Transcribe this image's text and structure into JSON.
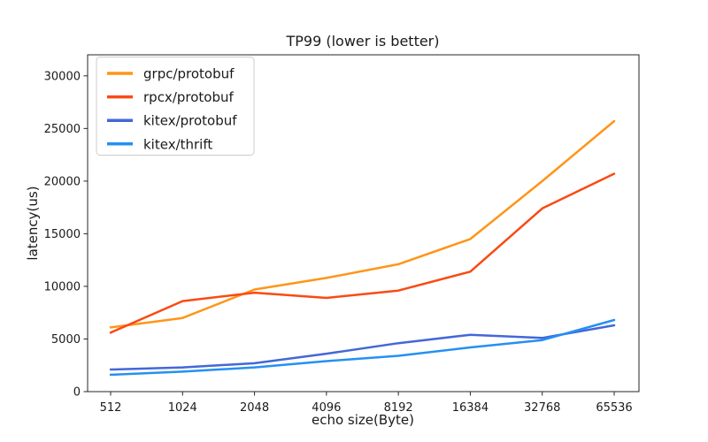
{
  "chart_data": {
    "type": "line",
    "title": "TP99 (lower is better)",
    "xlabel": "echo size(Byte)",
    "ylabel": "latency(us)",
    "categories": [
      "512",
      "1024",
      "2048",
      "4096",
      "8192",
      "16384",
      "32768",
      "65536"
    ],
    "yticks": [
      0,
      5000,
      10000,
      15000,
      20000,
      25000,
      30000
    ],
    "ylim": [
      0,
      32000
    ],
    "grid": false,
    "legend_position": "upper-left",
    "series": [
      {
        "name": "grpc/protobuf",
        "color": "#FF9518",
        "values": [
          6100,
          7000,
          9700,
          10800,
          12100,
          14500,
          20000,
          25700
        ]
      },
      {
        "name": "rpcx/protobuf",
        "color": "#FA4A12",
        "values": [
          5600,
          8600,
          9400,
          8900,
          9600,
          11400,
          17400,
          20700
        ]
      },
      {
        "name": "kitex/protobuf",
        "color": "#4467D8",
        "values": [
          2100,
          2300,
          2700,
          3600,
          4600,
          5400,
          5100,
          6300
        ]
      },
      {
        "name": "kitex/thrift",
        "color": "#2590F2",
        "values": [
          1600,
          1900,
          2300,
          2900,
          3400,
          4200,
          4900,
          6800
        ]
      }
    ]
  },
  "colors": {
    "background": "#ffffff",
    "spine": "#262626",
    "tick": "#262626",
    "text": "#1a1a1a",
    "legend_border": "#cccccc",
    "legend_background": "#ffffff"
  }
}
